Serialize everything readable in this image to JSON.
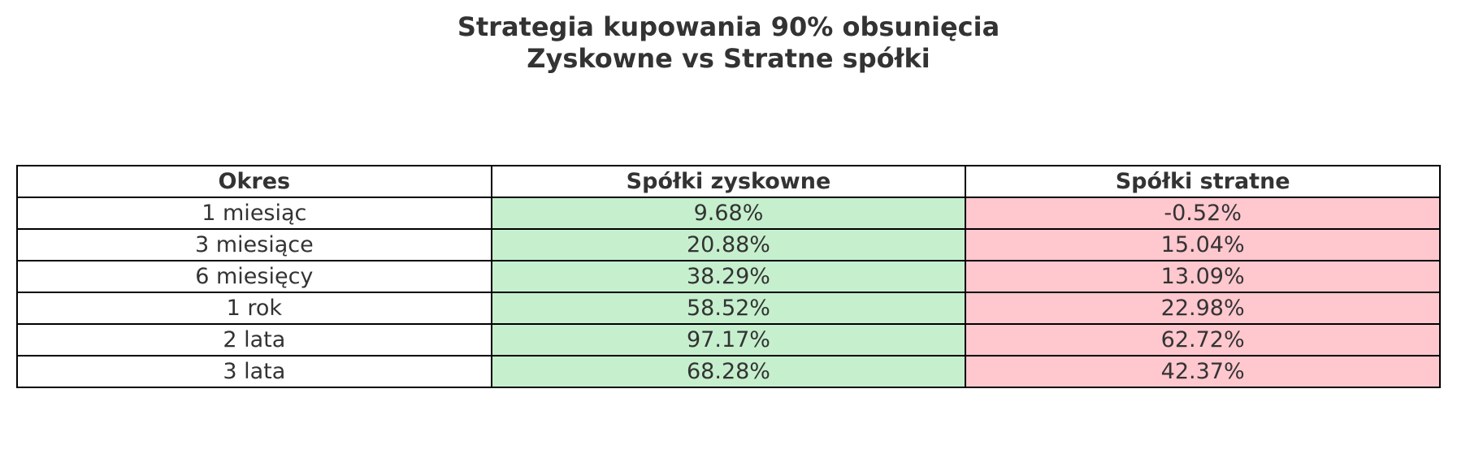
{
  "header": {
    "title_lines": [
      "Strategia kupowania 90% obsunięcia",
      "Zyskowne vs Stratne spółki"
    ]
  },
  "table": {
    "columns": [
      "Okres",
      "Spółki zyskowne",
      "Spółki stratne"
    ],
    "rows": [
      [
        "1 miesiąc",
        "9.68%",
        "-0.52%"
      ],
      [
        "3 miesiące",
        "20.88%",
        "15.04%"
      ],
      [
        "6 miesięcy",
        "38.29%",
        "13.09%"
      ],
      [
        "1 rok",
        "58.52%",
        "22.98%"
      ],
      [
        "2 lata",
        "97.17%",
        "62.72%"
      ],
      [
        "3 lata",
        "68.28%",
        "42.37%"
      ]
    ]
  }
}
